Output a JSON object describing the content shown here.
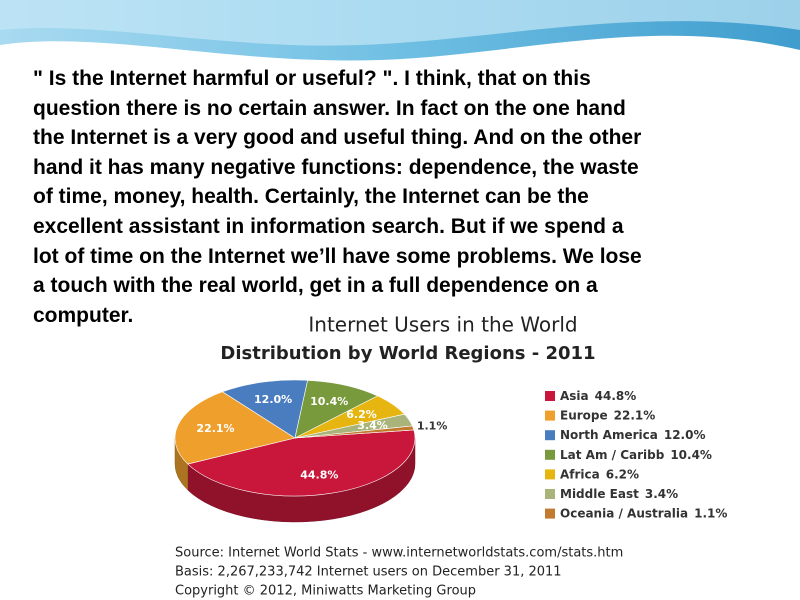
{
  "text": {
    "lines": [
      "\" Is the Internet harmful or useful? \". I think, that on this",
      "question there is no certain answer. In fact on the one hand",
      "the Internet is a very good and useful thing. And on the other",
      "hand it has many negative functions: dependence, the waste",
      "of time, money, health. Certainly, the Internet can be the",
      "excellent assistant in information search. But if we spend a",
      "lot of time on the Internet we’ll have some problems. We lose",
      "a touch with the real world, get in a full dependence on a",
      "computer."
    ]
  },
  "chart_data": {
    "type": "pie",
    "title": "Internet Users in the World",
    "subtitle": "Distribution by World Regions - 2011",
    "categories": [
      "Asia",
      "Europe",
      "North America",
      "Lat Am / Caribb",
      "Africa",
      "Middle East",
      "Oceania / Australia"
    ],
    "values": [
      44.8,
      22.1,
      12.0,
      10.4,
      6.2,
      3.4,
      1.1
    ],
    "value_labels": [
      "44.8%",
      "22.1%",
      "12.0%",
      "10.4%",
      "6.2%",
      "3.4%",
      "1.1%"
    ],
    "colors": [
      "#c8173a",
      "#efa02c",
      "#4a7cc0",
      "#789a3c",
      "#e6b510",
      "#a8b47a",
      "#c27a2e"
    ],
    "legend": "right",
    "source": [
      "Source: Internet World Stats -  www.internetworldstats.com/stats.htm",
      "Basis: 2,267,233,742 Internet users on December 31, 2011",
      "Copyright © 2012, Miniwatts Marketing Group"
    ]
  }
}
